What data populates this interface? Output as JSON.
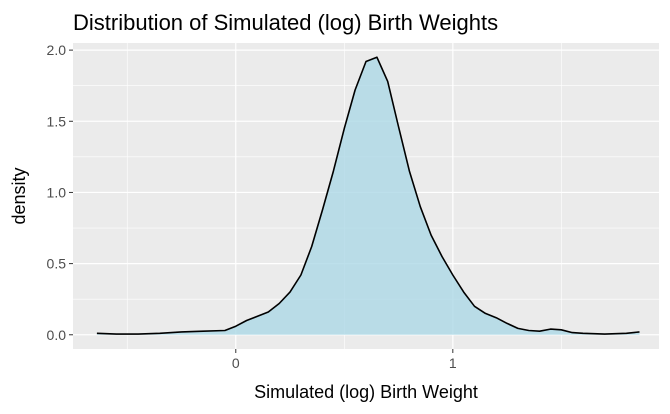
{
  "chart_data": {
    "type": "area",
    "title": "Distribution of Simulated (log) Birth Weights",
    "xlabel": "Simulated (log) Birth Weight",
    "ylabel": "density",
    "xlim": [
      -0.75,
      1.95
    ],
    "ylim": [
      -0.1,
      2.05
    ],
    "x_ticks": [
      0,
      1
    ],
    "x_tick_labels": [
      "0",
      "1"
    ],
    "y_ticks": [
      0.0,
      0.5,
      1.0,
      1.5,
      2.0
    ],
    "y_tick_labels": [
      "0.0",
      "0.5",
      "1.0",
      "1.5",
      "2.0"
    ],
    "grid": true,
    "panel_background": "#ebebeb",
    "grid_color": "#ffffff",
    "fill_color": "#add8e6",
    "line_color": "#000000",
    "series": [
      {
        "x": [
          -0.64,
          -0.55,
          -0.45,
          -0.35,
          -0.25,
          -0.15,
          -0.05,
          0.0,
          0.05,
          0.1,
          0.15,
          0.2,
          0.25,
          0.3,
          0.35,
          0.4,
          0.45,
          0.5,
          0.55,
          0.6,
          0.65,
          0.7,
          0.75,
          0.8,
          0.85,
          0.9,
          0.95,
          1.0,
          1.05,
          1.1,
          1.15,
          1.2,
          1.25,
          1.3,
          1.35,
          1.4,
          1.45,
          1.5,
          1.55,
          1.6,
          1.7,
          1.8,
          1.86
        ],
        "y": [
          0.01,
          0.005,
          0.005,
          0.01,
          0.02,
          0.025,
          0.03,
          0.06,
          0.1,
          0.13,
          0.16,
          0.22,
          0.3,
          0.42,
          0.62,
          0.88,
          1.15,
          1.45,
          1.72,
          1.92,
          1.95,
          1.78,
          1.46,
          1.15,
          0.9,
          0.7,
          0.55,
          0.42,
          0.3,
          0.2,
          0.15,
          0.12,
          0.08,
          0.045,
          0.03,
          0.025,
          0.04,
          0.035,
          0.015,
          0.01,
          0.005,
          0.01,
          0.02
        ]
      }
    ]
  }
}
